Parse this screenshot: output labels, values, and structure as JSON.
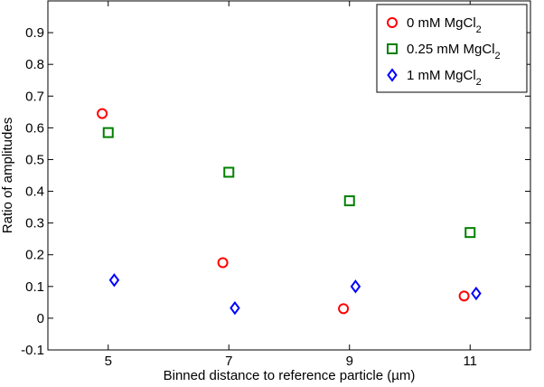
{
  "chart_data": {
    "type": "scatter",
    "xlabel": "Binned distance to reference particle (µm)",
    "ylabel": "Ratio of amplitudes",
    "xlim": [
      4,
      12
    ],
    "ylim": [
      -0.1,
      1.0
    ],
    "xticks": [
      5,
      7,
      9,
      11
    ],
    "xtick_labels": [
      "5",
      "7",
      "9",
      "11"
    ],
    "yticks": [
      -0.1,
      0,
      0.1,
      0.2,
      0.3,
      0.4,
      0.5,
      0.6,
      0.7,
      0.8,
      0.9
    ],
    "ytick_labels": [
      "-0.1",
      "0",
      "0.1",
      "0.2",
      "0.3",
      "0.4",
      "0.5",
      "0.6",
      "0.7",
      "0.8",
      "0.9"
    ],
    "grid": false,
    "legend_position": "top-right",
    "series": [
      {
        "name": "0 mM MgCl2",
        "label_main": "0 mM MgCl",
        "label_sub": "2",
        "marker": "circle",
        "color": "#ff0000",
        "x": [
          4.9,
          6.9,
          8.9,
          10.9
        ],
        "y": [
          0.645,
          0.175,
          0.03,
          0.07
        ]
      },
      {
        "name": "0.25 mM MgCl2",
        "label_main": "0.25 mM MgCl",
        "label_sub": "2",
        "marker": "square",
        "color": "#008000",
        "x": [
          5.0,
          7.0,
          9.0,
          11.0
        ],
        "y": [
          0.585,
          0.46,
          0.37,
          0.27
        ]
      },
      {
        "name": "1 mM MgCl2",
        "label_main": "1 mM MgCl",
        "label_sub": "2",
        "marker": "diamond",
        "color": "#0000ff",
        "x": [
          5.1,
          7.1,
          9.1,
          11.1
        ],
        "y": [
          0.12,
          0.032,
          0.1,
          0.078
        ]
      }
    ]
  }
}
